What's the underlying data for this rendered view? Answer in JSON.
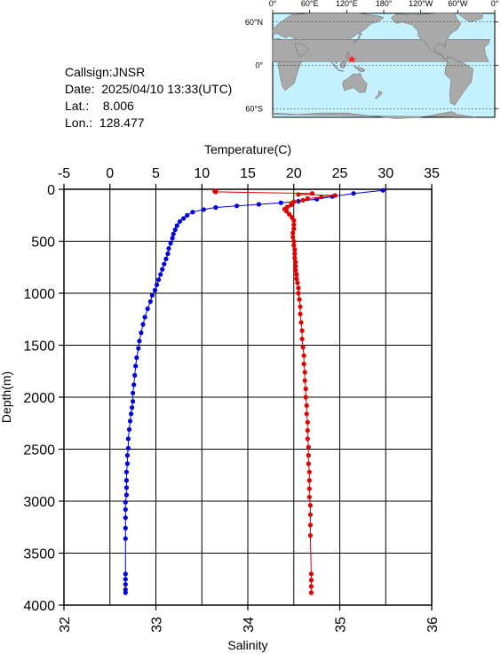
{
  "station": {
    "callsign": "Callsign:JNSR",
    "date_label": "Date:",
    "date_value": "2025/04/10 13:33(UTC)",
    "lat_label": "Lat.:",
    "lat_value": "8.006",
    "lon_label": "Lon.:",
    "lon_value": "128.477"
  },
  "map": {
    "lon_labels": [
      "0°",
      "60°E",
      "120°E",
      "180°",
      "120°W",
      "60°W",
      "0°"
    ],
    "lat_labels": [
      "60°N",
      "0°",
      "60°S"
    ],
    "ocean_color": "#c6f2ff",
    "land_color": "#a9a9a9",
    "marker_color": "#ff2020",
    "station": {
      "lon": 128.477,
      "lat": 8.006
    }
  },
  "chart_data": {
    "type": "line",
    "top_axis_title": "Temperature(C)",
    "bottom_axis_title": "Salinity",
    "y_axis_title": "Depth(m)",
    "temp_ticks": [
      -5,
      0,
      5,
      10,
      15,
      20,
      25,
      30,
      35
    ],
    "sal_ticks": [
      32,
      33,
      34,
      35,
      36
    ],
    "depth_ticks": [
      0,
      500,
      1000,
      1500,
      2000,
      2500,
      3000,
      3500,
      4000
    ],
    "temp_range": [
      -5,
      35
    ],
    "sal_range": [
      32,
      36
    ],
    "depth_range": [
      0,
      4000
    ],
    "grid": true,
    "series": [
      {
        "quantity": "temperature",
        "color": "#0000e0",
        "points": [
          [
            29.7,
            10
          ],
          [
            26.5,
            40
          ],
          [
            24.2,
            70
          ],
          [
            22.5,
            95
          ],
          [
            20.5,
            115
          ],
          [
            18.6,
            130
          ],
          [
            16.2,
            145
          ],
          [
            13.8,
            160
          ],
          [
            11.5,
            175
          ],
          [
            10.2,
            195
          ],
          [
            9.0,
            220
          ],
          [
            8.4,
            250
          ],
          [
            8.0,
            280
          ],
          [
            7.6,
            310
          ],
          [
            7.3,
            350
          ],
          [
            7.1,
            390
          ],
          [
            6.9,
            430
          ],
          [
            6.8,
            470
          ],
          [
            6.6,
            520
          ],
          [
            6.4,
            570
          ],
          [
            6.3,
            620
          ],
          [
            6.1,
            670
          ],
          [
            5.9,
            720
          ],
          [
            5.7,
            770
          ],
          [
            5.5,
            820
          ],
          [
            5.3,
            870
          ],
          [
            5.1,
            920
          ],
          [
            4.9,
            970
          ],
          [
            4.6,
            1020
          ],
          [
            4.4,
            1080
          ],
          [
            4.1,
            1150
          ],
          [
            3.8,
            1230
          ],
          [
            3.6,
            1300
          ],
          [
            3.4,
            1380
          ],
          [
            3.2,
            1460
          ],
          [
            3.1,
            1530
          ],
          [
            2.9,
            1620
          ],
          [
            2.8,
            1700
          ],
          [
            2.7,
            1790
          ],
          [
            2.6,
            1880
          ],
          [
            2.5,
            1960
          ],
          [
            2.5,
            2040
          ],
          [
            2.4,
            2100
          ],
          [
            2.3,
            2160
          ],
          [
            2.2,
            2230
          ],
          [
            2.1,
            2310
          ],
          [
            2.0,
            2400
          ],
          [
            2.0,
            2490
          ],
          [
            1.9,
            2560
          ],
          [
            1.9,
            2640
          ],
          [
            1.8,
            2720
          ],
          [
            1.8,
            2800
          ],
          [
            1.8,
            2870
          ],
          [
            1.8,
            2940
          ],
          [
            1.7,
            3010
          ],
          [
            1.7,
            3080
          ],
          [
            1.7,
            3160
          ],
          [
            1.7,
            3260
          ],
          [
            1.7,
            3360
          ],
          [
            1.7,
            3700
          ],
          [
            1.7,
            3750
          ],
          [
            1.7,
            3800
          ],
          [
            1.7,
            3850
          ],
          [
            1.7,
            3880
          ]
        ]
      },
      {
        "quantity": "salinity",
        "color": "#e00000",
        "points": [
          [
            33.65,
            15
          ],
          [
            33.64,
            20
          ],
          [
            33.65,
            25
          ],
          [
            34.7,
            40
          ],
          [
            34.55,
            50
          ],
          [
            34.95,
            60
          ],
          [
            34.8,
            75
          ],
          [
            34.65,
            90
          ],
          [
            34.6,
            105
          ],
          [
            34.5,
            120
          ],
          [
            34.48,
            135
          ],
          [
            34.47,
            150
          ],
          [
            34.43,
            170
          ],
          [
            34.4,
            190
          ],
          [
            34.42,
            210
          ],
          [
            34.45,
            240
          ],
          [
            34.48,
            270
          ],
          [
            34.5,
            300
          ],
          [
            34.5,
            340
          ],
          [
            34.5,
            380
          ],
          [
            34.49,
            420
          ],
          [
            34.49,
            460
          ],
          [
            34.5,
            500
          ],
          [
            34.5,
            540
          ],
          [
            34.51,
            580
          ],
          [
            34.51,
            620
          ],
          [
            34.51,
            660
          ],
          [
            34.52,
            700
          ],
          [
            34.52,
            740
          ],
          [
            34.52,
            780
          ],
          [
            34.53,
            820
          ],
          [
            34.53,
            860
          ],
          [
            34.54,
            900
          ],
          [
            34.55,
            950
          ],
          [
            34.55,
            1000
          ],
          [
            34.56,
            1060
          ],
          [
            34.57,
            1130
          ],
          [
            34.57,
            1200
          ],
          [
            34.58,
            1280
          ],
          [
            34.59,
            1360
          ],
          [
            34.59,
            1440
          ],
          [
            34.6,
            1520
          ],
          [
            34.61,
            1600
          ],
          [
            34.61,
            1680
          ],
          [
            34.62,
            1760
          ],
          [
            34.62,
            1840
          ],
          [
            34.63,
            1920
          ],
          [
            34.63,
            2000
          ],
          [
            34.64,
            2080
          ],
          [
            34.64,
            2160
          ],
          [
            34.65,
            2240
          ],
          [
            34.65,
            2320
          ],
          [
            34.65,
            2400
          ],
          [
            34.66,
            2480
          ],
          [
            34.66,
            2560
          ],
          [
            34.66,
            2640
          ],
          [
            34.67,
            2720
          ],
          [
            34.67,
            2800
          ],
          [
            34.67,
            2880
          ],
          [
            34.67,
            2960
          ],
          [
            34.68,
            3040
          ],
          [
            34.68,
            3130
          ],
          [
            34.68,
            3230
          ],
          [
            34.68,
            3330
          ],
          [
            34.69,
            3700
          ],
          [
            34.69,
            3760
          ],
          [
            34.69,
            3820
          ],
          [
            34.69,
            3880
          ]
        ]
      }
    ]
  }
}
